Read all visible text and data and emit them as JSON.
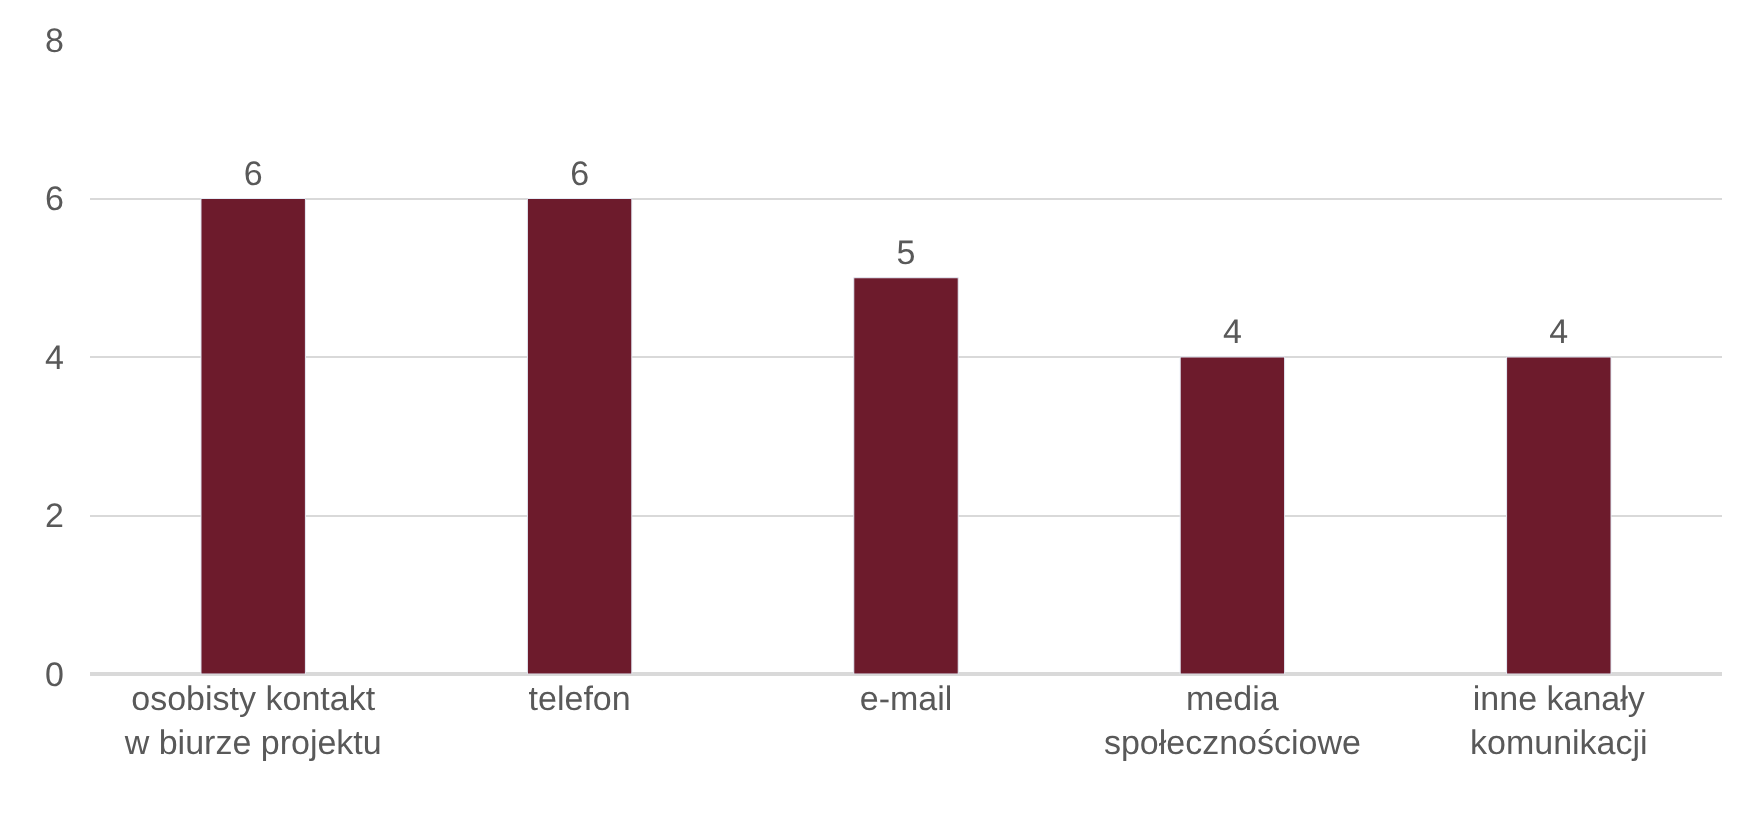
{
  "chart_data": {
    "type": "bar",
    "categories": [
      "osobisty kontakt\nw biurze projektu",
      "telefon",
      "e-mail",
      "media\nspołecznościowe",
      "inne kanały\nkomunikacji"
    ],
    "values": [
      6,
      6,
      5,
      4,
      4
    ],
    "color": "#6d1b2c",
    "ylim": [
      0,
      8
    ],
    "yticks": [
      0,
      2,
      4,
      6,
      8
    ],
    "grid": "y",
    "data_labels": true
  }
}
